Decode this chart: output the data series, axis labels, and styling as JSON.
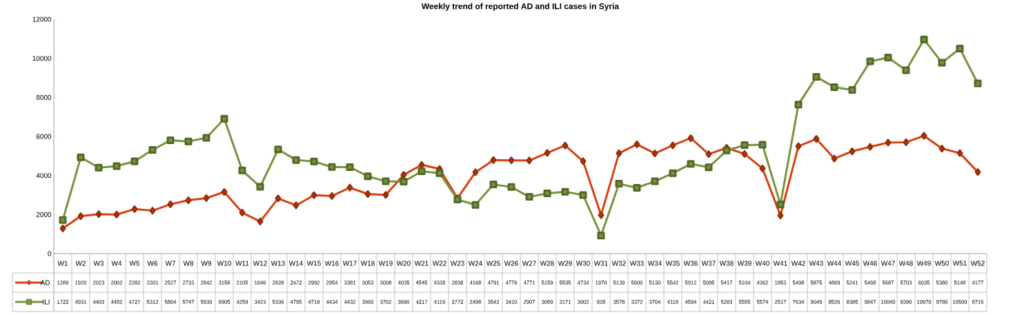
{
  "chart_data": {
    "type": "line",
    "title": "Weekly trend of reported AD and ILI cases in Syria",
    "categories": [
      "W1",
      "W2",
      "W3",
      "W4",
      "W5",
      "W6",
      "W7",
      "W8",
      "W9",
      "W10",
      "W11",
      "W12",
      "W13",
      "W14",
      "W15",
      "W16",
      "W17",
      "W18",
      "W19",
      "W20",
      "W21",
      "W22",
      "W23",
      "W24",
      "W25",
      "W26",
      "W27",
      "W28",
      "W29",
      "W30",
      "W31",
      "W32",
      "W33",
      "W34",
      "W35",
      "W36",
      "W37",
      "W38",
      "W39",
      "W40",
      "W41",
      "W42",
      "W43",
      "W44",
      "W45",
      "W46",
      "W47",
      "W48",
      "W49",
      "W50",
      "W51",
      "W52"
    ],
    "series": [
      {
        "name": "AD",
        "color": "#d7400f",
        "marker": "diamond",
        "values": [
          1289,
          1920,
          2023,
          2002,
          2282,
          2201,
          2527,
          2733,
          2842,
          3158,
          2105,
          1646,
          2828,
          2472,
          2992,
          2954,
          3381,
          3053,
          3008,
          4035,
          4545,
          4339,
          2838,
          4168,
          4791,
          4776,
          4771,
          5159,
          5535,
          4734,
          1970,
          5139,
          5600,
          5130,
          5542,
          5912,
          5095,
          5417,
          5104,
          4362,
          1953,
          5498,
          5875,
          4869,
          5241,
          5468,
          5687,
          5703,
          6035,
          5380,
          5148,
          4177
        ]
      },
      {
        "name": "ILI",
        "color": "#77933c",
        "marker": "square",
        "values": [
          1722,
          4931,
          4403,
          4482,
          4727,
          5312,
          5804,
          5747,
          5930,
          6905,
          4259,
          3423,
          5336,
          4795,
          4719,
          4434,
          4432,
          3960,
          3702,
          3690,
          4217,
          4119,
          2772,
          2498,
          3543,
          3410,
          2907,
          3089,
          3171,
          3002,
          928,
          3578,
          3372,
          3704,
          4118,
          4594,
          4421,
          5283,
          5555,
          5574,
          2517,
          7634,
          9049,
          8526,
          8385,
          9847,
          10040,
          9390,
          10970,
          9780,
          10500,
          8716
        ]
      }
    ],
    "ylim": [
      0,
      12000
    ],
    "yticks": [
      0,
      2000,
      4000,
      6000,
      8000,
      10000,
      12000
    ],
    "data_labels": true,
    "legend": "bottom left",
    "line_style": "solid",
    "grid": false
  }
}
